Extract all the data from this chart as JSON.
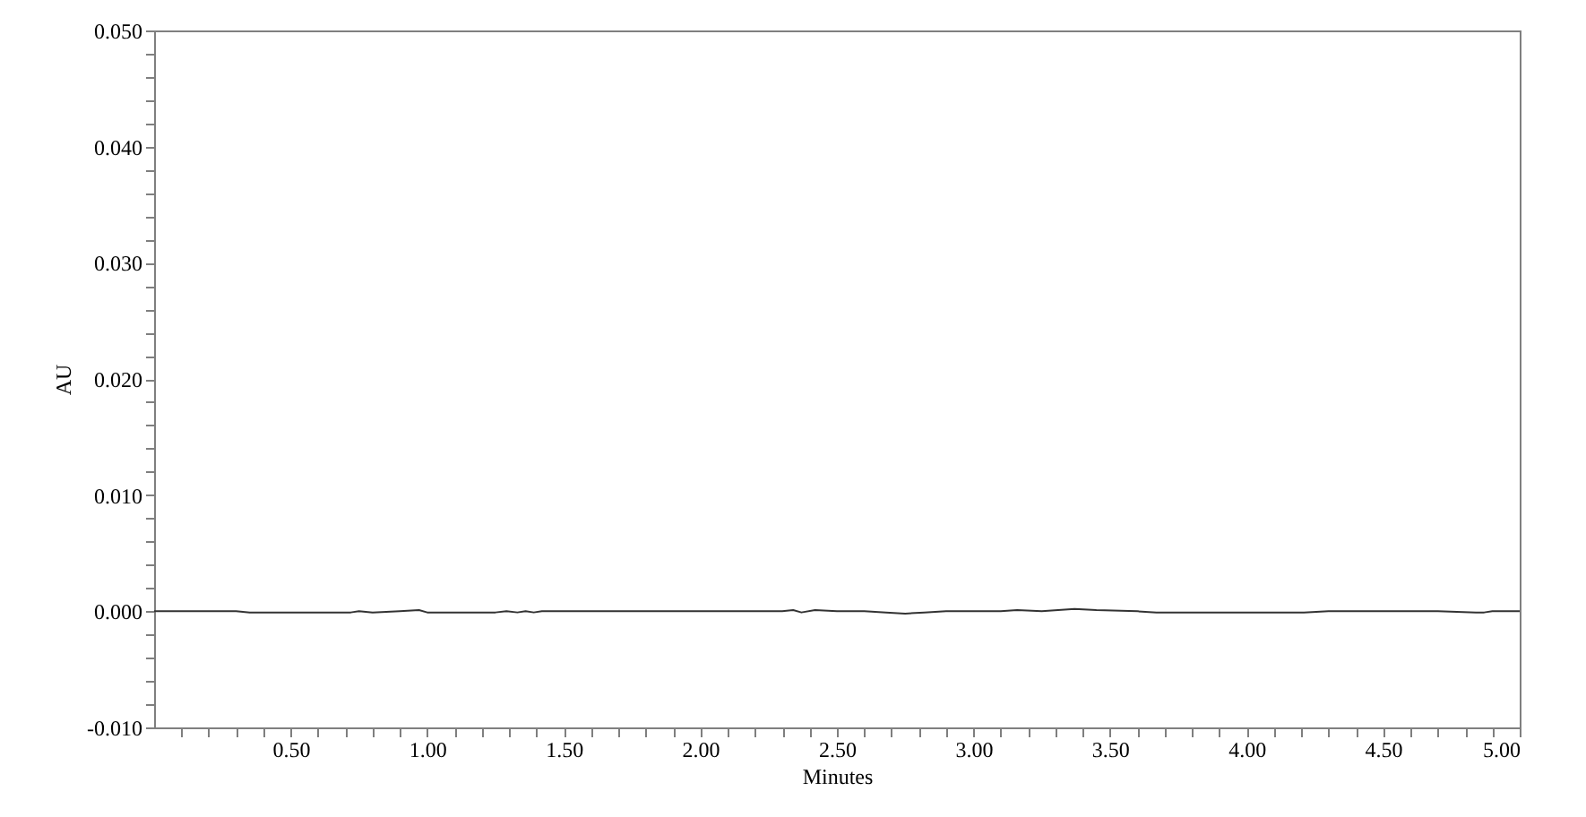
{
  "chart_data": {
    "type": "line",
    "xlabel": "Minutes",
    "ylabel": "AU",
    "x": [
      0,
      0.1,
      0.2,
      0.3,
      0.35,
      0.45,
      0.55,
      0.65,
      0.72,
      0.75,
      0.8,
      0.9,
      0.97,
      1.0,
      1.1,
      1.2,
      1.25,
      1.29,
      1.33,
      1.36,
      1.39,
      1.42,
      1.5,
      1.7,
      1.9,
      2.1,
      2.3,
      2.34,
      2.37,
      2.42,
      2.5,
      2.6,
      2.68,
      2.75,
      2.82,
      2.9,
      3.0,
      3.1,
      3.16,
      3.25,
      3.37,
      3.45,
      3.6,
      3.67,
      3.8,
      3.9,
      4.0,
      4.1,
      4.21,
      4.3,
      4.5,
      4.7,
      4.84,
      4.87,
      4.9,
      5.0
    ],
    "series": [
      {
        "color": "#333333",
        "values": [
          0,
          0,
          0,
          0,
          -0.0001,
          -0.0001,
          -0.0001,
          -0.0001,
          -0.0001,
          0,
          -0.0001,
          0,
          0.0001,
          -0.0001,
          -0.0001,
          -0.0001,
          -0.0001,
          0,
          -0.0001,
          0,
          -0.0001,
          0,
          0,
          0,
          0,
          0,
          0,
          0.0001,
          -0.0001,
          0.0001,
          0,
          0,
          -0.0001,
          -0.0002,
          -0.0001,
          0,
          0,
          0,
          0.0001,
          0,
          0.0002,
          0.0001,
          0,
          -0.0001,
          -0.0001,
          -0.0001,
          -0.0001,
          -0.0001,
          -0.0001,
          0,
          0,
          0,
          -0.0001,
          -0.0001,
          0,
          0
        ]
      }
    ],
    "xlim": [
      0,
      5
    ],
    "ylim": [
      -0.01,
      0.05
    ],
    "xticks": [
      {
        "value": 0.1,
        "label": null
      },
      {
        "value": 0.2,
        "label": null
      },
      {
        "value": 0.3,
        "label": null
      },
      {
        "value": 0.4,
        "label": null
      },
      {
        "value": 0.5,
        "label": "0.50"
      },
      {
        "value": 0.6,
        "label": null
      },
      {
        "value": 0.7,
        "label": null
      },
      {
        "value": 0.8,
        "label": null
      },
      {
        "value": 0.9,
        "label": null
      },
      {
        "value": 1.0,
        "label": "1.00"
      },
      {
        "value": 1.1,
        "label": null
      },
      {
        "value": 1.2,
        "label": null
      },
      {
        "value": 1.3,
        "label": null
      },
      {
        "value": 1.4,
        "label": null
      },
      {
        "value": 1.5,
        "label": "1.50"
      },
      {
        "value": 1.6,
        "label": null
      },
      {
        "value": 1.7,
        "label": null
      },
      {
        "value": 1.8,
        "label": null
      },
      {
        "value": 1.9,
        "label": null
      },
      {
        "value": 2.0,
        "label": "2.00"
      },
      {
        "value": 2.1,
        "label": null
      },
      {
        "value": 2.2,
        "label": null
      },
      {
        "value": 2.3,
        "label": null
      },
      {
        "value": 2.4,
        "label": null
      },
      {
        "value": 2.5,
        "label": "2.50"
      },
      {
        "value": 2.6,
        "label": null
      },
      {
        "value": 2.7,
        "label": null
      },
      {
        "value": 2.8,
        "label": null
      },
      {
        "value": 2.9,
        "label": null
      },
      {
        "value": 3.0,
        "label": "3.00"
      },
      {
        "value": 3.1,
        "label": null
      },
      {
        "value": 3.2,
        "label": null
      },
      {
        "value": 3.3,
        "label": null
      },
      {
        "value": 3.4,
        "label": null
      },
      {
        "value": 3.5,
        "label": "3.50"
      },
      {
        "value": 3.6,
        "label": null
      },
      {
        "value": 3.7,
        "label": null
      },
      {
        "value": 3.8,
        "label": null
      },
      {
        "value": 3.9,
        "label": null
      },
      {
        "value": 4.0,
        "label": "4.00"
      },
      {
        "value": 4.1,
        "label": null
      },
      {
        "value": 4.2,
        "label": null
      },
      {
        "value": 4.3,
        "label": null
      },
      {
        "value": 4.4,
        "label": null
      },
      {
        "value": 4.5,
        "label": "4.50"
      },
      {
        "value": 4.6,
        "label": null
      },
      {
        "value": 4.7,
        "label": null
      },
      {
        "value": 4.8,
        "label": null
      },
      {
        "value": 4.9,
        "label": null
      },
      {
        "value": 5.0,
        "label": "5.00"
      }
    ],
    "yticks": [
      {
        "value": -0.01,
        "label": "-0.010"
      },
      {
        "value": -0.008,
        "label": null
      },
      {
        "value": -0.006,
        "label": null
      },
      {
        "value": -0.004,
        "label": null
      },
      {
        "value": -0.002,
        "label": null
      },
      {
        "value": 0,
        "label": "0.000"
      },
      {
        "value": 0.002,
        "label": null
      },
      {
        "value": 0.004,
        "label": null
      },
      {
        "value": 0.006,
        "label": null
      },
      {
        "value": 0.008,
        "label": null
      },
      {
        "value": 0.01,
        "label": "0.010"
      },
      {
        "value": 0.012,
        "label": null
      },
      {
        "value": 0.014,
        "label": null
      },
      {
        "value": 0.016,
        "label": null
      },
      {
        "value": 0.018,
        "label": null
      },
      {
        "value": 0.02,
        "label": "0.020"
      },
      {
        "value": 0.022,
        "label": null
      },
      {
        "value": 0.024,
        "label": null
      },
      {
        "value": 0.026,
        "label": null
      },
      {
        "value": 0.028,
        "label": null
      },
      {
        "value": 0.03,
        "label": "0.030"
      },
      {
        "value": 0.032,
        "label": null
      },
      {
        "value": 0.034,
        "label": null
      },
      {
        "value": 0.036,
        "label": null
      },
      {
        "value": 0.038,
        "label": null
      },
      {
        "value": 0.04,
        "label": "0.040"
      },
      {
        "value": 0.042,
        "label": null
      },
      {
        "value": 0.044,
        "label": null
      },
      {
        "value": 0.046,
        "label": null
      },
      {
        "value": 0.048,
        "label": null
      },
      {
        "value": 0.05,
        "label": "0.050"
      }
    ]
  }
}
